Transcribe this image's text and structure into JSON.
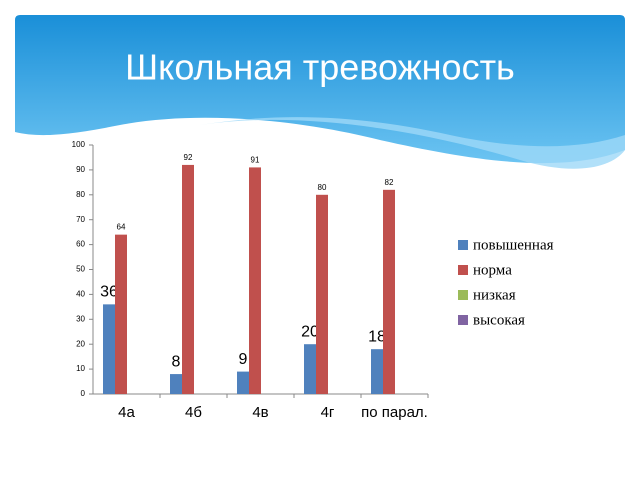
{
  "chart_data": {
    "type": "bar",
    "title": "Школьная тревожность",
    "categories": [
      "4а",
      "4б",
      "4в",
      "4г",
      "по парал."
    ],
    "series": [
      {
        "name": "повышенная",
        "color": "#4f81bd",
        "values": [
          36,
          8,
          9,
          20,
          18
        ]
      },
      {
        "name": "норма",
        "color": "#c0504d",
        "values": [
          64,
          92,
          91,
          80,
          82
        ]
      },
      {
        "name": "низкая",
        "color": "#9bbb59",
        "values": [
          null,
          null,
          null,
          null,
          null
        ]
      },
      {
        "name": "высокая",
        "color": "#8064a2",
        "values": [
          null,
          null,
          null,
          null,
          null
        ]
      }
    ],
    "ylim": [
      0,
      100
    ],
    "yticks": [
      0,
      10,
      20,
      30,
      40,
      50,
      60,
      70,
      80,
      90,
      100
    ],
    "grid": false,
    "legend": "right"
  }
}
